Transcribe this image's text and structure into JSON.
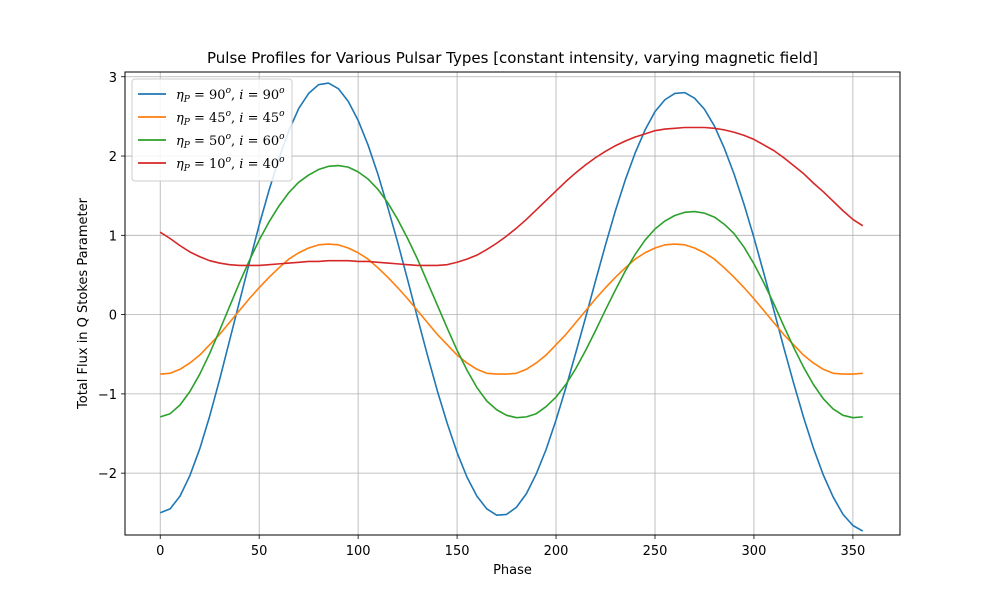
{
  "chart_data": {
    "type": "line",
    "title": "Pulse Profiles for Various Pulsar Types [constant intensity, varying magnetic field]",
    "xlabel": "Phase",
    "ylabel": "Total Flux in Q Stokes Parameter",
    "xlim": [
      -17.8,
      373.8
    ],
    "ylim": [
      -2.78,
      3.06
    ],
    "xticks": [
      0,
      50,
      100,
      150,
      200,
      250,
      300,
      350
    ],
    "yticks": [
      -2,
      -1,
      0,
      1,
      2,
      3
    ],
    "ytick_labels": [
      "−2",
      "−1",
      "0",
      "1",
      "2",
      "3"
    ],
    "grid": true,
    "legend_position": "top-left",
    "x": [
      0,
      5,
      10,
      15,
      20,
      25,
      30,
      35,
      40,
      45,
      50,
      55,
      60,
      65,
      70,
      75,
      80,
      85,
      90,
      95,
      100,
      105,
      110,
      115,
      120,
      125,
      130,
      135,
      140,
      145,
      150,
      155,
      160,
      165,
      170,
      175,
      180,
      185,
      190,
      195,
      200,
      205,
      210,
      215,
      220,
      225,
      230,
      235,
      240,
      245,
      250,
      255,
      260,
      265,
      270,
      275,
      280,
      285,
      290,
      295,
      300,
      305,
      310,
      315,
      320,
      325,
      330,
      335,
      340,
      345,
      350,
      355
    ],
    "series": [
      {
        "legend": {
          "eta": "90",
          "i": "90"
        },
        "color": "#1f77b4",
        "values": [
          -2.5,
          -2.45,
          -2.29,
          -2.03,
          -1.69,
          -1.28,
          -0.82,
          -0.33,
          0.16,
          0.65,
          1.13,
          1.57,
          1.97,
          2.32,
          2.6,
          2.79,
          2.9,
          2.92,
          2.85,
          2.69,
          2.45,
          2.14,
          1.77,
          1.35,
          0.91,
          0.44,
          -0.04,
          -0.51,
          -0.96,
          -1.37,
          -1.74,
          -2.05,
          -2.29,
          -2.45,
          -2.53,
          -2.52,
          -2.43,
          -2.26,
          -2.01,
          -1.7,
          -1.33,
          -0.92,
          -0.48,
          -0.03,
          0.43,
          0.88,
          1.31,
          1.7,
          2.04,
          2.33,
          2.56,
          2.71,
          2.79,
          2.8,
          2.73,
          2.59,
          2.38,
          2.1,
          1.77,
          1.39,
          0.97,
          0.52,
          0.06,
          -0.41,
          -0.86,
          -1.29,
          -1.68,
          -2.02,
          -2.3,
          -2.52,
          -2.66,
          -2.73
        ]
      },
      {
        "legend": {
          "eta": "45",
          "i": "45"
        },
        "color": "#ff7f0e",
        "values": [
          -0.75,
          -0.74,
          -0.69,
          -0.61,
          -0.51,
          -0.38,
          -0.25,
          -0.1,
          0.05,
          0.2,
          0.34,
          0.47,
          0.59,
          0.7,
          0.78,
          0.84,
          0.88,
          0.89,
          0.88,
          0.84,
          0.78,
          0.7,
          0.59,
          0.47,
          0.34,
          0.2,
          0.05,
          -0.1,
          -0.25,
          -0.38,
          -0.51,
          -0.61,
          -0.69,
          -0.74,
          -0.75,
          -0.75,
          -0.74,
          -0.69,
          -0.61,
          -0.51,
          -0.38,
          -0.25,
          -0.1,
          0.05,
          0.2,
          0.34,
          0.47,
          0.59,
          0.7,
          0.78,
          0.84,
          0.88,
          0.89,
          0.88,
          0.84,
          0.78,
          0.7,
          0.59,
          0.47,
          0.34,
          0.2,
          0.05,
          -0.1,
          -0.25,
          -0.38,
          -0.51,
          -0.61,
          -0.69,
          -0.74,
          -0.75,
          -0.75,
          -0.74
        ]
      },
      {
        "legend": {
          "eta": "50",
          "i": "60"
        },
        "color": "#2ca02c",
        "values": [
          -1.29,
          -1.25,
          -1.14,
          -0.97,
          -0.75,
          -0.49,
          -0.2,
          0.1,
          0.4,
          0.68,
          0.94,
          1.17,
          1.37,
          1.54,
          1.67,
          1.76,
          1.83,
          1.87,
          1.88,
          1.86,
          1.8,
          1.71,
          1.58,
          1.41,
          1.2,
          0.96,
          0.7,
          0.41,
          0.12,
          -0.17,
          -0.45,
          -0.7,
          -0.92,
          -1.09,
          -1.2,
          -1.27,
          -1.3,
          -1.29,
          -1.25,
          -1.16,
          -1.04,
          -0.88,
          -0.68,
          -0.45,
          -0.2,
          0.06,
          0.31,
          0.55,
          0.76,
          0.94,
          1.08,
          1.18,
          1.25,
          1.29,
          1.3,
          1.28,
          1.23,
          1.14,
          1.02,
          0.85,
          0.64,
          0.4,
          0.14,
          -0.14,
          -0.41,
          -0.66,
          -0.88,
          -1.06,
          -1.19,
          -1.27,
          -1.3,
          -1.29
        ]
      },
      {
        "legend": {
          "eta": "10",
          "i": "40"
        },
        "color": "#d62728",
        "values": [
          1.04,
          0.96,
          0.87,
          0.79,
          0.73,
          0.68,
          0.65,
          0.63,
          0.62,
          0.62,
          0.62,
          0.63,
          0.64,
          0.65,
          0.66,
          0.67,
          0.67,
          0.68,
          0.68,
          0.68,
          0.67,
          0.67,
          0.66,
          0.65,
          0.64,
          0.63,
          0.62,
          0.62,
          0.62,
          0.63,
          0.66,
          0.7,
          0.75,
          0.82,
          0.9,
          0.99,
          1.09,
          1.2,
          1.32,
          1.44,
          1.56,
          1.68,
          1.79,
          1.89,
          1.98,
          2.06,
          2.13,
          2.19,
          2.24,
          2.28,
          2.32,
          2.34,
          2.35,
          2.36,
          2.36,
          2.36,
          2.35,
          2.33,
          2.3,
          2.26,
          2.21,
          2.14,
          2.07,
          1.98,
          1.88,
          1.78,
          1.66,
          1.55,
          1.43,
          1.31,
          1.2,
          1.12
        ]
      }
    ]
  }
}
